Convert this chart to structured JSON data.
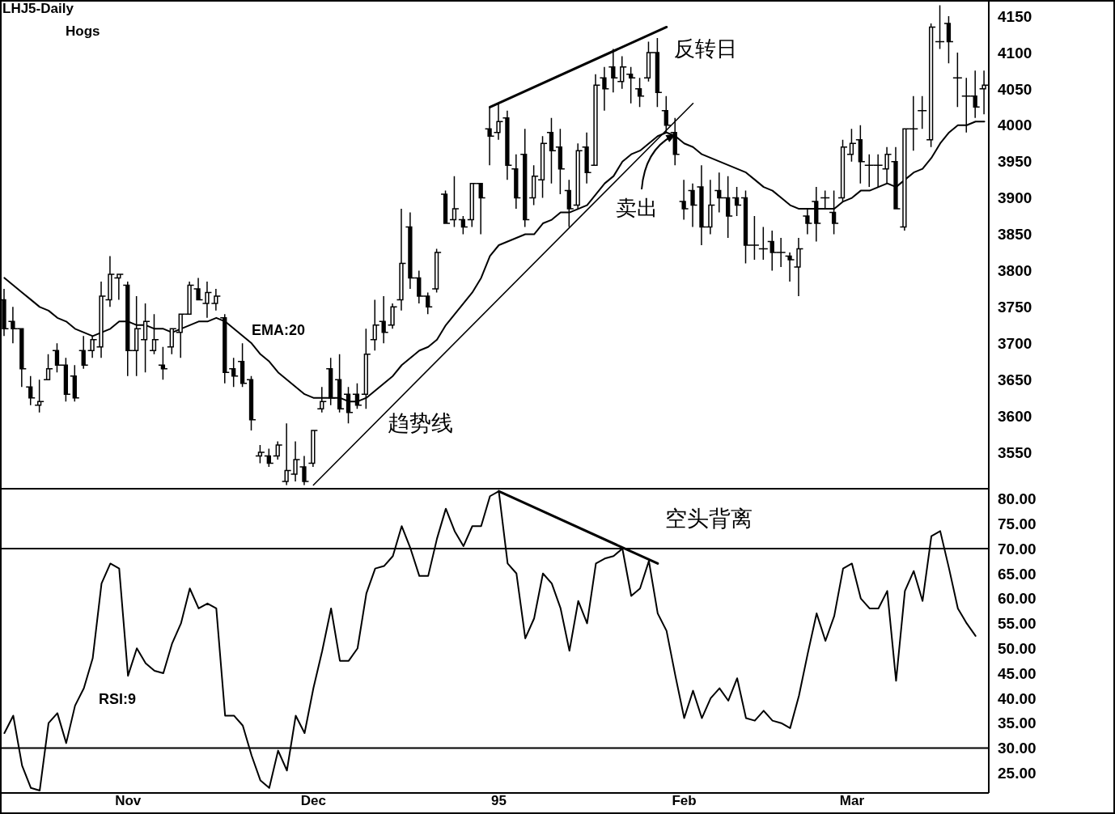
{
  "chart_data": [
    {
      "type": "candlestick",
      "title": "LHJ5-Daily",
      "subtitle": "Hogs",
      "categories": [
        null,
        null,
        null,
        null,
        null,
        null,
        null,
        null,
        null,
        null,
        null,
        null,
        null,
        null,
        null,
        null,
        null,
        null,
        null,
        null,
        null,
        null,
        null,
        null,
        null,
        null,
        null,
        null,
        null,
        null,
        null,
        null,
        null,
        null,
        null,
        null,
        null,
        null,
        null,
        null,
        null,
        null,
        null,
        null,
        null,
        null,
        null,
        null,
        null,
        null,
        null,
        null,
        null,
        null,
        null,
        null,
        null,
        null,
        null,
        null,
        null,
        null,
        null,
        null,
        null,
        null,
        null,
        null,
        null,
        null,
        null,
        null,
        null,
        null,
        null,
        null,
        null,
        null,
        null,
        null,
        null,
        null,
        null,
        null,
        null,
        null,
        null,
        null,
        null,
        null,
        null,
        null,
        null,
        null,
        null,
        null,
        null,
        null,
        null,
        null,
        null,
        null,
        null,
        null,
        null,
        null,
        null,
        null,
        null,
        null,
        null,
        null
      ],
      "ohlc": [
        [
          3760,
          3775,
          3710,
          3720
        ],
        [
          3730,
          3750,
          3700,
          3720
        ],
        [
          3720,
          3720,
          3640,
          3665
        ],
        [
          3640,
          3655,
          3615,
          3625
        ],
        [
          3615,
          3650,
          3605,
          3620
        ],
        [
          3650,
          3685,
          3650,
          3665
        ],
        [
          3690,
          3700,
          3660,
          3670
        ],
        [
          3670,
          3680,
          3620,
          3630
        ],
        [
          3655,
          3670,
          3620,
          3625
        ],
        [
          3690,
          3710,
          3665,
          3670
        ],
        [
          3690,
          3710,
          3680,
          3705
        ],
        [
          3695,
          3785,
          3680,
          3765
        ],
        [
          3760,
          3820,
          3750,
          3795
        ],
        [
          3790,
          3795,
          3760,
          3795
        ],
        [
          3780,
          3785,
          3655,
          3690
        ],
        [
          3690,
          3765,
          3655,
          3720
        ],
        [
          3705,
          3755,
          3660,
          3730
        ],
        [
          3690,
          3740,
          3685,
          3705
        ],
        [
          3670,
          3695,
          3650,
          3665
        ],
        [
          3695,
          3720,
          3685,
          3720
        ],
        [
          3715,
          3740,
          3680,
          3740
        ],
        [
          3740,
          3785,
          3740,
          3780
        ],
        [
          3775,
          3790,
          3760,
          3760
        ],
        [
          3755,
          3785,
          3735,
          3770
        ],
        [
          3755,
          3775,
          3745,
          3765
        ],
        [
          3735,
          3740,
          3645,
          3660
        ],
        [
          3665,
          3680,
          3640,
          3655
        ],
        [
          3675,
          3700,
          3640,
          3645
        ],
        [
          3650,
          3655,
          3580,
          3595
        ],
        [
          3545,
          3560,
          3535,
          3550
        ],
        [
          3545,
          3555,
          3530,
          3535
        ],
        [
          3545,
          3565,
          3540,
          3560
        ],
        [
          3510,
          3590,
          3505,
          3525
        ],
        [
          3520,
          3565,
          3510,
          3540
        ],
        [
          3530,
          3545,
          3505,
          3510
        ],
        [
          3535,
          3580,
          3530,
          3580
        ],
        [
          3610,
          3640,
          3605,
          3620
        ],
        [
          3665,
          3680,
          3615,
          3625
        ],
        [
          3650,
          3685,
          3605,
          3610
        ],
        [
          3630,
          3640,
          3590,
          3605
        ],
        [
          3630,
          3645,
          3610,
          3615
        ],
        [
          3630,
          3720,
          3610,
          3685
        ],
        [
          3705,
          3760,
          3690,
          3725
        ],
        [
          3730,
          3765,
          3700,
          3715
        ],
        [
          3725,
          3755,
          3720,
          3750
        ],
        [
          3760,
          3885,
          3745,
          3810
        ],
        [
          3860,
          3880,
          3775,
          3790
        ],
        [
          3790,
          3800,
          3755,
          3765
        ],
        [
          3765,
          3770,
          3740,
          3750
        ],
        [
          3775,
          3830,
          3770,
          3825
        ],
        [
          3905,
          3910,
          3865,
          3865
        ],
        [
          3870,
          3930,
          3860,
          3885
        ],
        [
          3870,
          3875,
          3850,
          3860
        ],
        [
          3870,
          3920,
          3860,
          3920
        ],
        [
          3920,
          3920,
          3850,
          3900
        ],
        [
          3995,
          4025,
          3945,
          3985
        ],
        [
          3990,
          4030,
          3980,
          4005
        ],
        [
          4010,
          4020,
          3925,
          3945
        ],
        [
          3940,
          3960,
          3885,
          3900
        ],
        [
          3960,
          3995,
          3860,
          3870
        ],
        [
          3900,
          3945,
          3890,
          3930
        ],
        [
          3925,
          3985,
          3900,
          3975
        ],
        [
          3990,
          4010,
          3920,
          3965
        ],
        [
          3970,
          3995,
          3905,
          3940
        ],
        [
          3910,
          3925,
          3860,
          3885
        ],
        [
          3890,
          3975,
          3885,
          3965
        ],
        [
          3970,
          3990,
          3920,
          3935
        ],
        [
          3945,
          4070,
          3945,
          4055
        ],
        [
          4065,
          4080,
          4020,
          4050
        ],
        [
          4080,
          4105,
          4045,
          4065
        ],
        [
          4060,
          4095,
          4050,
          4080
        ],
        [
          4070,
          4080,
          4030,
          4065
        ],
        [
          4050,
          4065,
          4025,
          4040
        ],
        [
          4065,
          4115,
          4060,
          4100
        ],
        [
          4100,
          4120,
          4025,
          4045
        ],
        [
          4020,
          4040,
          3990,
          4000
        ],
        [
          3990,
          4010,
          3945,
          3960
        ],
        [
          3895,
          3925,
          3870,
          3885
        ],
        [
          3910,
          3920,
          3860,
          3890
        ],
        [
          3915,
          3945,
          3835,
          3860
        ],
        [
          3860,
          3925,
          3850,
          3890
        ],
        [
          3910,
          3935,
          3880,
          3900
        ],
        [
          3900,
          3930,
          3845,
          3875
        ],
        [
          3900,
          3915,
          3875,
          3890
        ],
        [
          3900,
          3910,
          3810,
          3835
        ],
        [
          3835,
          3875,
          3815,
          3835
        ],
        [
          3830,
          3860,
          3815,
          3830
        ],
        [
          3840,
          3855,
          3800,
          3825
        ],
        [
          3825,
          3845,
          3805,
          3825
        ],
        [
          3820,
          3825,
          3785,
          3815
        ],
        [
          3805,
          3845,
          3765,
          3830
        ],
        [
          3875,
          3885,
          3850,
          3865
        ],
        [
          3895,
          3915,
          3840,
          3865
        ],
        [
          3900,
          3910,
          3885,
          3900
        ],
        [
          3880,
          3910,
          3850,
          3865
        ],
        [
          3900,
          3980,
          3895,
          3970
        ],
        [
          3960,
          3995,
          3950,
          3975
        ],
        [
          3980,
          4000,
          3920,
          3950
        ],
        [
          3945,
          3960,
          3915,
          3945
        ],
        [
          3945,
          3960,
          3915,
          3945
        ],
        [
          3940,
          3970,
          3920,
          3960
        ],
        [
          3950,
          3970,
          3885,
          3885
        ],
        [
          3860,
          3995,
          3855,
          3995
        ],
        [
          3995,
          4040,
          3965,
          3995
        ],
        [
          4020,
          4040,
          3995,
          4020
        ],
        [
          3980,
          4140,
          3970,
          4135
        ],
        [
          4115,
          4165,
          4105,
          4115
        ],
        [
          4140,
          4150,
          4085,
          4115
        ],
        [
          4065,
          4100,
          4025,
          4065
        ],
        [
          4040,
          4065,
          3990,
          4040
        ],
        [
          4040,
          4075,
          4010,
          4025
        ],
        [
          4050,
          4075,
          4015,
          4055
        ]
      ],
      "color": "#000000",
      "series": [
        {
          "type": "line",
          "name": "EMA:20",
          "color": "#000000",
          "values": [
            3790,
            3780,
            3770,
            3760,
            3750,
            3745,
            3735,
            3730,
            3720,
            3715,
            3710,
            3715,
            3720,
            3730,
            3730,
            3725,
            3725,
            3720,
            3720,
            3715,
            3720,
            3725,
            3730,
            3730,
            3735,
            3730,
            3720,
            3710,
            3700,
            3685,
            3675,
            3660,
            3650,
            3640,
            3630,
            3625,
            3625,
            3625,
            3625,
            3620,
            3620,
            3625,
            3635,
            3645,
            3655,
            3670,
            3680,
            3690,
            3695,
            3705,
            3725,
            3740,
            3755,
            3770,
            3790,
            3820,
            3835,
            3840,
            3845,
            3850,
            3850,
            3865,
            3870,
            3880,
            3880,
            3885,
            3890,
            3905,
            3920,
            3930,
            3950,
            3960,
            3965,
            3975,
            3985,
            3990,
            3985,
            3975,
            3970,
            3960,
            3955,
            3950,
            3945,
            3940,
            3935,
            3925,
            3915,
            3910,
            3900,
            3890,
            3885,
            3885,
            3885,
            3885,
            3885,
            3895,
            3900,
            3910,
            3910,
            3915,
            3920,
            3915,
            3925,
            3935,
            3940,
            3955,
            3975,
            3990,
            4000,
            4000,
            4005,
            4005
          ]
        },
        {
          "type": "line",
          "name": "趋势线",
          "color": "#000000",
          "values": [
            null,
            null,
            null,
            null,
            null,
            null,
            null,
            null,
            null,
            null,
            null,
            null,
            null,
            null,
            null,
            null,
            null,
            null,
            null,
            null,
            null,
            null,
            null,
            null,
            null,
            null,
            null,
            null,
            null,
            null,
            null,
            null,
            null,
            null,
            null,
            3505,
            null,
            null,
            null,
            null,
            null,
            null,
            null,
            null,
            null,
            null,
            null,
            null,
            null,
            null,
            null,
            null,
            null,
            null,
            null,
            null,
            null,
            null,
            null,
            null,
            null,
            null,
            null,
            null,
            null,
            null,
            null,
            null,
            null,
            null,
            null,
            null,
            null,
            null,
            null,
            null,
            null,
            null,
            4030,
            null,
            null,
            null,
            null,
            null,
            null,
            null,
            null,
            null,
            null,
            null,
            null,
            null,
            null,
            null,
            null,
            null,
            null,
            null,
            null,
            null,
            null,
            null,
            null,
            null,
            null,
            null,
            null,
            null,
            null,
            null,
            null,
            null
          ]
        },
        {
          "type": "line",
          "color": "#000000",
          "values": [
            null,
            null,
            null,
            null,
            null,
            null,
            null,
            null,
            null,
            null,
            null,
            null,
            null,
            null,
            null,
            null,
            null,
            null,
            null,
            null,
            null,
            null,
            null,
            null,
            null,
            null,
            null,
            null,
            null,
            null,
            null,
            null,
            null,
            null,
            null,
            null,
            null,
            null,
            null,
            null,
            null,
            null,
            null,
            null,
            null,
            null,
            null,
            null,
            null,
            null,
            null,
            null,
            null,
            null,
            null,
            4025,
            null,
            null,
            null,
            null,
            null,
            null,
            null,
            null,
            null,
            null,
            null,
            null,
            null,
            null,
            null,
            null,
            null,
            null,
            null,
            4135,
            null,
            null,
            null,
            null,
            null,
            null,
            null,
            null,
            null,
            null,
            null,
            null,
            null,
            null,
            null,
            null,
            null,
            null,
            null,
            null,
            null,
            null,
            null,
            null,
            null,
            null,
            null,
            null,
            null,
            null,
            null,
            null,
            null,
            null,
            null,
            null
          ]
        }
      ],
      "ylim": [
        3500,
        4170
      ],
      "yticks": [
        3550,
        3600,
        3650,
        3700,
        3750,
        3800,
        3850,
        3900,
        3950,
        4000,
        4050,
        4100,
        4150
      ],
      "tick_labels": "y",
      "annotations": [
        "反转日",
        "卖出"
      ]
    },
    {
      "type": "line",
      "categories": [
        null,
        null,
        null,
        null,
        null,
        null,
        null,
        null,
        null,
        null,
        null,
        null,
        null,
        null,
        "Nov",
        null,
        null,
        null,
        null,
        null,
        null,
        null,
        null,
        null,
        null,
        null,
        null,
        null,
        null,
        null,
        null,
        null,
        null,
        null,
        null,
        "Dec",
        null,
        null,
        null,
        null,
        null,
        null,
        null,
        null,
        null,
        null,
        null,
        null,
        null,
        null,
        null,
        null,
        null,
        null,
        null,
        null,
        "95",
        null,
        null,
        null,
        null,
        null,
        null,
        null,
        null,
        null,
        null,
        null,
        null,
        null,
        null,
        null,
        null,
        null,
        null,
        null,
        null,
        "Feb",
        null,
        null,
        null,
        null,
        null,
        null,
        null,
        null,
        null,
        null,
        null,
        null,
        null,
        null,
        null,
        null,
        null,
        null,
        "Mar",
        null,
        null,
        null,
        null,
        null,
        null,
        null,
        null,
        null,
        null,
        null,
        null,
        null,
        null,
        null
      ],
      "series": [
        {
          "name": "RSI:9",
          "color": "#000000",
          "values": [
            33,
            36.5,
            26.5,
            22,
            21.5,
            35,
            37,
            31,
            38.5,
            42,
            48,
            63,
            67,
            66,
            44.5,
            50,
            47,
            45.5,
            45,
            51,
            55,
            62,
            58,
            59,
            58,
            36.5,
            36.5,
            34.5,
            28.5,
            23.5,
            22,
            29.5,
            25.5,
            36.5,
            33,
            42,
            49.5,
            58,
            47.5,
            47.5,
            50,
            61,
            66,
            66.5,
            68.5,
            74.5,
            70,
            64.5,
            64.5,
            72,
            78,
            73.5,
            70.5,
            74.5,
            74.5,
            80.5,
            81.5,
            67,
            65,
            52,
            56,
            65,
            63,
            58,
            49.5,
            59.5,
            55,
            67,
            68,
            68.5,
            70,
            60.5,
            62,
            67.5,
            57,
            53.5,
            44.5,
            36,
            41.5,
            36,
            40,
            42,
            39.5,
            44,
            36,
            35.5,
            37.5,
            35.5,
            35,
            34,
            40.5,
            49,
            57,
            51.5,
            56.5,
            66,
            67,
            60,
            58,
            58,
            61.5,
            43.5,
            61.5,
            65.5,
            59.5,
            72.5,
            73.5,
            66,
            58,
            55,
            52.5,
            null
          ]
        },
        {
          "color": "#000000",
          "values": [
            null,
            null,
            null,
            null,
            null,
            null,
            null,
            null,
            null,
            null,
            null,
            null,
            null,
            null,
            null,
            null,
            null,
            null,
            null,
            null,
            null,
            null,
            null,
            null,
            null,
            null,
            null,
            null,
            null,
            null,
            null,
            null,
            null,
            null,
            null,
            null,
            null,
            null,
            null,
            null,
            null,
            null,
            null,
            null,
            null,
            null,
            null,
            null,
            null,
            null,
            null,
            null,
            null,
            null,
            null,
            null,
            81.5,
            null,
            null,
            null,
            null,
            null,
            null,
            null,
            null,
            null,
            null,
            null,
            null,
            null,
            null,
            null,
            null,
            null,
            67,
            null,
            null,
            null,
            null,
            null,
            null,
            null,
            null,
            null,
            null,
            null,
            null,
            null,
            null,
            null,
            null,
            null,
            null,
            null,
            null,
            null,
            null,
            null,
            null,
            null,
            null,
            null,
            null,
            null,
            null,
            null,
            null,
            null,
            null,
            null,
            null,
            null
          ]
        }
      ],
      "ylim": [
        21,
        82
      ],
      "yticks": [
        {
          "value": 25,
          "label": "25.00"
        },
        {
          "value": 30,
          "label": "30.00"
        },
        {
          "value": 35,
          "label": "35.00"
        },
        {
          "value": 40,
          "label": "40.00"
        },
        {
          "value": 45,
          "label": "45.00"
        },
        {
          "value": 50,
          "label": "50.00"
        },
        {
          "value": 55,
          "label": "55.00"
        },
        {
          "value": 60,
          "label": "60.00"
        },
        {
          "value": 65,
          "label": "65.00"
        },
        {
          "value": 70,
          "label": "70.00"
        },
        {
          "value": 75,
          "label": "75.00"
        },
        {
          "value": 80,
          "label": "80.00"
        }
      ],
      "ref_lines": [
        {
          "axis": "y",
          "value": 70,
          "color": "#000000"
        },
        {
          "axis": "y",
          "value": 30,
          "color": "#000000"
        }
      ],
      "annotations": [
        "空头背离"
      ]
    }
  ]
}
